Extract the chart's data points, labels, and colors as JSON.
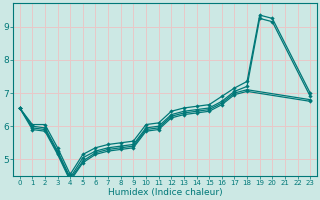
{
  "xlabel": "Humidex (Indice chaleur)",
  "bg_color": "#cce8e4",
  "grid_color": "#e8c8c8",
  "line_color": "#007878",
  "xlim": [
    -0.5,
    23.5
  ],
  "ylim": [
    4.5,
    9.7
  ],
  "xticks": [
    0,
    1,
    2,
    3,
    4,
    5,
    6,
    7,
    8,
    9,
    10,
    11,
    12,
    13,
    14,
    15,
    16,
    17,
    18,
    19,
    20,
    21,
    22,
    23
  ],
  "yticks": [
    5,
    6,
    7,
    8,
    9
  ],
  "lines": [
    {
      "x": [
        0,
        1,
        2,
        3,
        4,
        5,
        6,
        7,
        8,
        9,
        10,
        11,
        12,
        13,
        14,
        15,
        16,
        17,
        18,
        19,
        20,
        23
      ],
      "y": [
        6.55,
        6.05,
        6.05,
        5.35,
        4.55,
        5.15,
        5.35,
        5.45,
        5.5,
        5.55,
        6.05,
        6.1,
        6.45,
        6.55,
        6.6,
        6.65,
        6.9,
        7.15,
        7.35,
        9.35,
        9.25,
        7.0
      ]
    },
    {
      "x": [
        0,
        1,
        2,
        3,
        4,
        5,
        6,
        7,
        8,
        9,
        10,
        11,
        12,
        13,
        14,
        15,
        16,
        17,
        18,
        19,
        20,
        23
      ],
      "y": [
        6.55,
        6.0,
        5.95,
        5.25,
        4.45,
        5.05,
        5.25,
        5.35,
        5.4,
        5.45,
        5.95,
        6.0,
        6.35,
        6.45,
        6.5,
        6.55,
        6.75,
        7.05,
        7.2,
        9.25,
        9.15,
        6.9
      ]
    },
    {
      "x": [
        0,
        1,
        2,
        3,
        4,
        5,
        6,
        7,
        8,
        9,
        10,
        11,
        12,
        13,
        14,
        15,
        16,
        17,
        18,
        23
      ],
      "y": [
        6.55,
        5.95,
        5.9,
        5.2,
        4.4,
        4.95,
        5.2,
        5.3,
        5.35,
        5.4,
        5.9,
        5.95,
        6.3,
        6.4,
        6.45,
        6.5,
        6.7,
        7.0,
        7.1,
        6.8
      ]
    },
    {
      "x": [
        0,
        1,
        2,
        3,
        4,
        5,
        6,
        7,
        8,
        9,
        10,
        11,
        12,
        13,
        14,
        15,
        16,
        17,
        18,
        23
      ],
      "y": [
        6.55,
        5.9,
        5.85,
        5.15,
        4.35,
        4.9,
        5.15,
        5.25,
        5.3,
        5.35,
        5.85,
        5.9,
        6.25,
        6.35,
        6.4,
        6.45,
        6.65,
        6.95,
        7.05,
        6.75
      ]
    }
  ]
}
